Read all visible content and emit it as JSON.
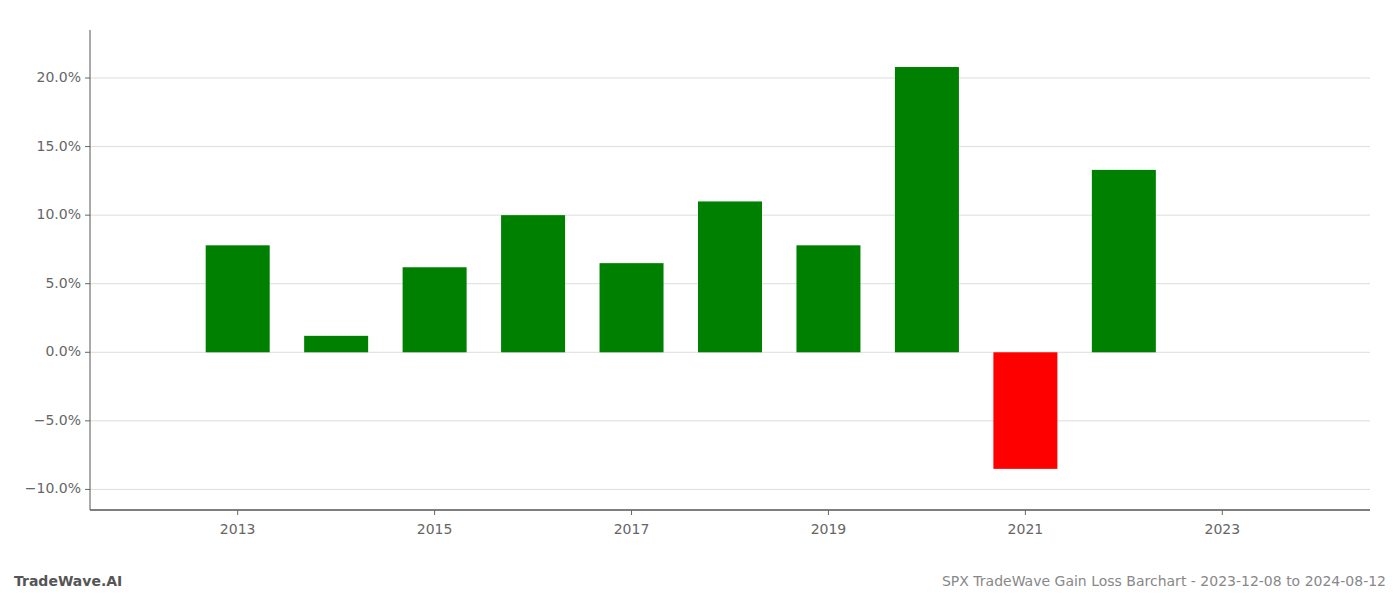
{
  "chart_data": {
    "type": "bar",
    "title": "SPX TradeWave Gain Loss Barchart - 2023-12-08 to 2024-08-12",
    "annotations": [
      "TradeWave.AI"
    ],
    "x": [
      2013,
      2014,
      2015,
      2016,
      2017,
      2018,
      2019,
      2020,
      2021,
      2022
    ],
    "values": [
      0.078,
      0.012,
      0.062,
      0.1,
      0.065,
      0.11,
      0.078,
      0.208,
      -0.085,
      0.133
    ],
    "colors": [
      "#008000",
      "#008000",
      "#008000",
      "#008000",
      "#008000",
      "#008000",
      "#008000",
      "#008000",
      "#ff0000",
      "#008000"
    ],
    "xlim": [
      2011.5,
      2024.5
    ],
    "xticks": [
      2013,
      2015,
      2017,
      2019,
      2021,
      2023
    ],
    "ylim": [
      -0.115,
      0.235
    ],
    "yticks": [
      {
        "value": -0.1,
        "label": "−10.0%"
      },
      {
        "value": -0.05,
        "label": "−5.0%"
      },
      {
        "value": 0.0,
        "label": "0.0%"
      },
      {
        "value": 0.05,
        "label": "5.0%"
      },
      {
        "value": 0.1,
        "label": "10.0%"
      },
      {
        "value": 0.15,
        "label": "15.0%"
      },
      {
        "value": 0.2,
        "label": "20.0%"
      }
    ],
    "grid": true
  }
}
